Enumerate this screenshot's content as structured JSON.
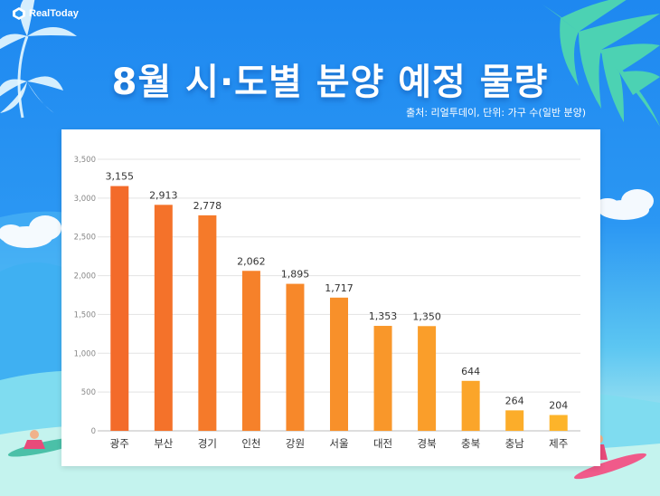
{
  "brand": {
    "logo_text": "RealToday"
  },
  "header": {
    "title": "8월 시·도별 분양 예정 물량",
    "source": "출처: 리얼투데이, 단위: 가구 수(일반 분양)"
  },
  "colors": {
    "bar_top_high": "#f36b2a",
    "bar_top_low": "#fdb42a"
  },
  "chart_data": {
    "type": "bar",
    "title": "8월 시·도별 분양 예정 물량",
    "categories": [
      "광주",
      "부산",
      "경기",
      "인천",
      "강원",
      "서울",
      "대전",
      "경북",
      "충북",
      "충남",
      "제주"
    ],
    "values": [
      3155,
      2913,
      2778,
      2062,
      1895,
      1717,
      1353,
      1350,
      644,
      264,
      204
    ],
    "value_labels": [
      "3,155",
      "2,913",
      "2,778",
      "2,062",
      "1,895",
      "1,717",
      "1,353",
      "1,350",
      "644",
      "264",
      "204"
    ],
    "yticks": [
      0,
      500,
      1000,
      1500,
      2000,
      2500,
      3000,
      3500
    ],
    "ytick_labels": [
      "0",
      "500",
      "1,000",
      "1,500",
      "2,000",
      "2,500",
      "3,000",
      "3,500"
    ],
    "ylim": [
      0,
      3500
    ],
    "grid": true
  }
}
